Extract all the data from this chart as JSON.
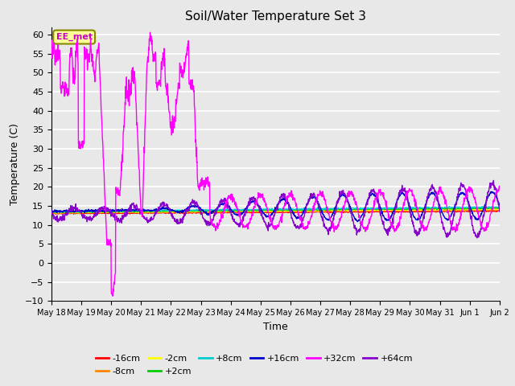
{
  "title": "Soil/Water Temperature Set 3",
  "xlabel": "Time",
  "ylabel": "Temperature (C)",
  "ylim": [
    -10,
    62
  ],
  "yticks": [
    -10,
    -5,
    0,
    5,
    10,
    15,
    20,
    25,
    30,
    35,
    40,
    45,
    50,
    55,
    60
  ],
  "annotation_text": "EE_met",
  "annotation_color": "#cc00cc",
  "annotation_bg": "#ffff99",
  "annotation_border": "#888800",
  "colors": {
    "m16": "#ff0000",
    "m8": "#ff8800",
    "m2": "#ffff00",
    "p2": "#00cc00",
    "p8": "#00cccc",
    "p16": "#0000cc",
    "p32": "#ff00ff",
    "p64": "#8800cc"
  },
  "bg_color": "#e8e8e8",
  "grid_color": "#ffffff",
  "x_tick_labels": [
    "May 18",
    "May 19",
    "May 20",
    "May 21",
    "May 22",
    "May 23",
    "May 24",
    "May 25",
    "May 26",
    "May 27",
    "May 28",
    "May 29",
    "May 30",
    "May 31",
    "Jun 1",
    "Jun 2"
  ],
  "legend_row1": [
    "-16cm",
    "-8cm",
    "-2cm",
    "+2cm",
    "+8cm",
    "+16cm"
  ],
  "legend_row2": [
    "+32cm",
    "+64cm"
  ]
}
